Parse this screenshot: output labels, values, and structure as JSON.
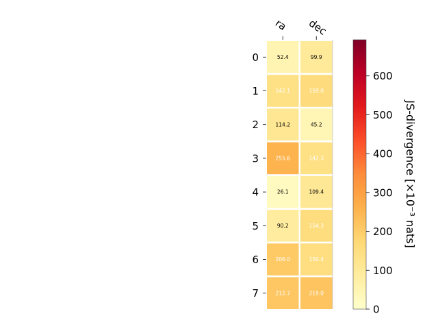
{
  "chart_data": {
    "type": "heatmap",
    "columns": [
      "ra",
      "dec"
    ],
    "rows": [
      "0",
      "1",
      "2",
      "3",
      "4",
      "5",
      "6",
      "7"
    ],
    "values": [
      [
        52.4,
        99.9
      ],
      [
        142.1,
        159.0
      ],
      [
        114.2,
        45.2
      ],
      [
        255.6,
        142.3
      ],
      [
        26.1,
        109.4
      ],
      [
        90.2,
        154.3
      ],
      [
        206.0,
        150.4
      ],
      [
        212.7,
        219.0
      ]
    ],
    "cell_labels": [
      [
        "52.4",
        "99.9"
      ],
      [
        "142.1",
        "159.0"
      ],
      [
        "114.2",
        "45.2"
      ],
      [
        "255.6",
        "142.3"
      ],
      [
        "26.1",
        "109.4"
      ],
      [
        "90.2",
        "154.3"
      ],
      [
        "206.0",
        "150.4"
      ],
      [
        "212.7",
        "219.0"
      ]
    ],
    "colorbar": {
      "title": "JS-divergence [×10⁻³ nats]",
      "range": [
        0,
        693
      ],
      "ticks": [
        "0",
        "100",
        "200",
        "300",
        "400",
        "500",
        "600"
      ],
      "colormap": "YlOrRd"
    },
    "label_colors": {
      "dark": "#000000",
      "light": "#ffffff"
    },
    "grid": false
  }
}
